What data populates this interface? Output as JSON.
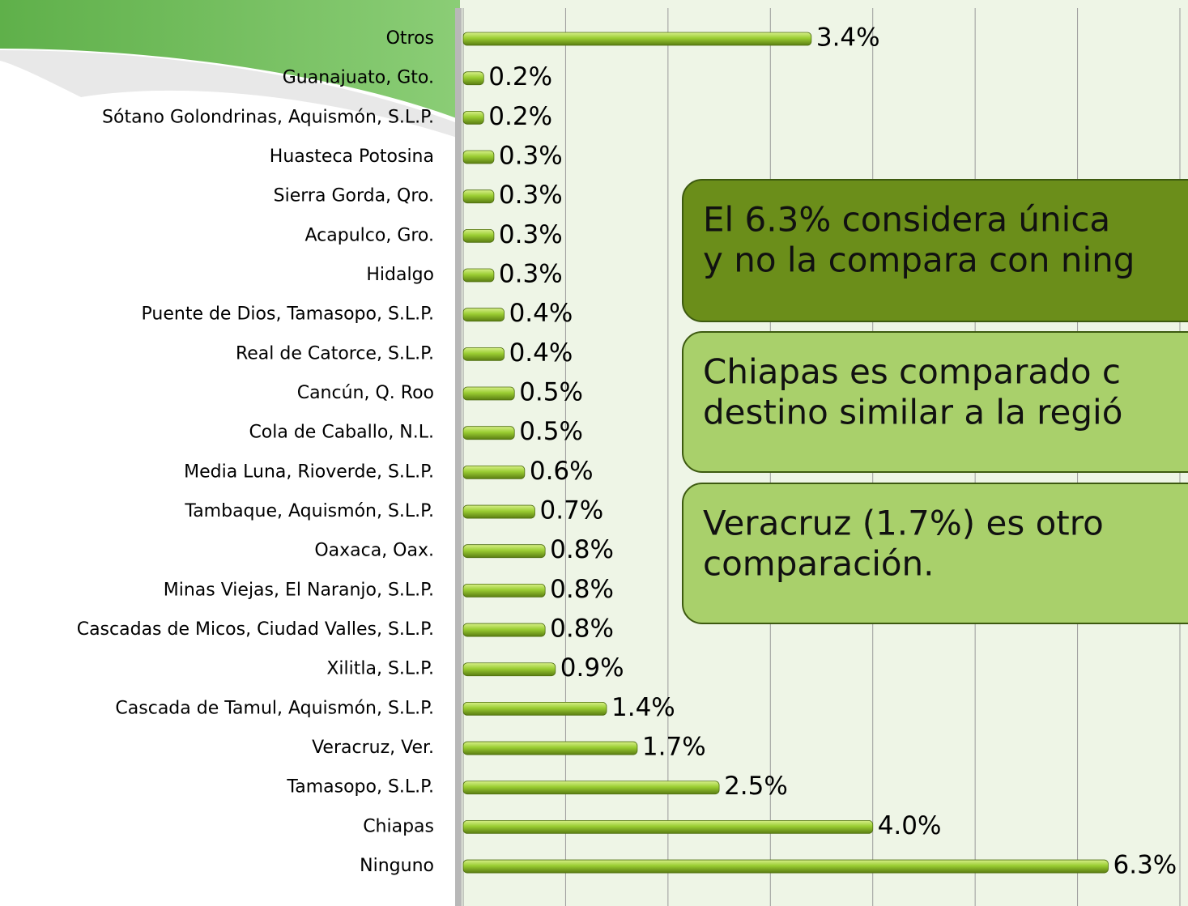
{
  "chart_data": {
    "type": "bar",
    "orientation": "horizontal",
    "categories": [
      "Otros",
      "Guanajuato, Gto.",
      "Sótano Golondrinas, Aquismón, S.L.P.",
      "Huasteca Potosina",
      "Sierra Gorda, Qro.",
      "Acapulco, Gro.",
      "Hidalgo",
      "Puente de Dios, Tamasopo, S.L.P.",
      "Real de Catorce, S.L.P.",
      "Cancún, Q. Roo",
      "Cola de Caballo, N.L.",
      "Media Luna, Rioverde, S.L.P.",
      "Tambaque, Aquismón, S.L.P.",
      "Oaxaca, Oax.",
      "Minas Viejas, El Naranjo, S.L.P.",
      "Cascadas de Micos, Ciudad Valles, S.L.P.",
      "Xilitla, S.L.P.",
      "Cascada de Tamul, Aquismón, S.L.P.",
      "Veracruz, Ver.",
      "Tamasopo, S.L.P.",
      "Chiapas",
      "Ninguno"
    ],
    "values": [
      3.4,
      0.2,
      0.2,
      0.3,
      0.3,
      0.3,
      0.3,
      0.4,
      0.4,
      0.5,
      0.5,
      0.6,
      0.7,
      0.8,
      0.8,
      0.8,
      0.9,
      1.4,
      1.7,
      2.5,
      4.0,
      6.3
    ],
    "value_labels": [
      "3.4%",
      "0.2%",
      "0.2%",
      "0.3%",
      "0.3%",
      "0.3%",
      "0.3%",
      "0.4%",
      "0.4%",
      "0.5%",
      "0.5%",
      "0.6%",
      "0.7%",
      "0.8%",
      "0.8%",
      "0.8%",
      "0.9%",
      "1.4%",
      "1.7%",
      "2.5%",
      "4.0%",
      "6.3%"
    ],
    "color": "#9acd32",
    "xlim": [
      0,
      7
    ],
    "xticks": [
      0,
      1,
      2,
      3,
      4,
      5,
      6,
      7
    ],
    "grid": true,
    "annotations": [
      {
        "lines": [
          "El 6.3% considera única",
          "y no la compara con ning"
        ],
        "color": "#6b8e1a"
      },
      {
        "lines": [
          "Chiapas es comparado c",
          "destino similar a la regió"
        ],
        "color": "#a9d06b"
      },
      {
        "lines": [
          "Veracruz (1.7%) es otro",
          "comparación."
        ],
        "color": "#a9d06b"
      }
    ]
  }
}
